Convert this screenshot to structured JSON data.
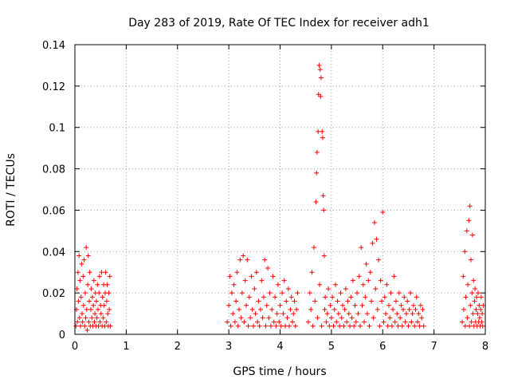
{
  "chart_data": {
    "type": "scatter",
    "title": "Day 283 of 2019, Rate Of TEC Index for receiver adh1",
    "xlabel": "GPS time / hours",
    "ylabel": "ROTI / TECUs",
    "xlim": [
      0,
      8
    ],
    "ylim": [
      0,
      0.14
    ],
    "xticks": [
      0,
      1,
      2,
      3,
      4,
      5,
      6,
      7,
      8
    ],
    "yticks": [
      0,
      0.02,
      0.04,
      0.06,
      0.08,
      0.1,
      0.12,
      0.14
    ],
    "ytick_labels": [
      "0",
      "0.02",
      "0.04",
      "0.06",
      "0.08",
      "0.1",
      "0.12",
      "0.14"
    ],
    "grid": true,
    "marker": "+",
    "color": "#ff0000",
    "series": [
      {
        "name": "adh1",
        "points": [
          [
            0.02,
            0.004
          ],
          [
            0.03,
            0.012
          ],
          [
            0.04,
            0.022
          ],
          [
            0.05,
            0.006
          ],
          [
            0.06,
            0.03
          ],
          [
            0.07,
            0.016
          ],
          [
            0.08,
            0.038
          ],
          [
            0.09,
            0.008
          ],
          [
            0.1,
            0.026
          ],
          [
            0.11,
            0.004
          ],
          [
            0.12,
            0.018
          ],
          [
            0.13,
            0.034
          ],
          [
            0.14,
            0.01
          ],
          [
            0.15,
            0.006
          ],
          [
            0.16,
            0.028
          ],
          [
            0.17,
            0.014
          ],
          [
            0.18,
            0.036
          ],
          [
            0.19,
            0.004
          ],
          [
            0.2,
            0.02
          ],
          [
            0.21,
            0.008
          ],
          [
            0.22,
            0.042
          ],
          [
            0.23,
            0.012
          ],
          [
            0.24,
            0.002
          ],
          [
            0.25,
            0.024
          ],
          [
            0.26,
            0.038
          ],
          [
            0.27,
            0.006
          ],
          [
            0.28,
            0.016
          ],
          [
            0.29,
            0.03
          ],
          [
            0.3,
            0.004
          ],
          [
            0.31,
            0.012
          ],
          [
            0.32,
            0.022
          ],
          [
            0.33,
            0.008
          ],
          [
            0.34,
            0.018
          ],
          [
            0.35,
            0.004
          ],
          [
            0.36,
            0.014
          ],
          [
            0.37,
            0.026
          ],
          [
            0.38,
            0.006
          ],
          [
            0.39,
            0.01
          ],
          [
            0.4,
            0.02
          ],
          [
            0.41,
            0.004
          ],
          [
            0.42,
            0.016
          ],
          [
            0.43,
            0.008
          ],
          [
            0.44,
            0.024
          ],
          [
            0.45,
            0.012
          ],
          [
            0.46,
            0.004
          ],
          [
            0.47,
            0.02
          ],
          [
            0.48,
            0.028
          ],
          [
            0.49,
            0.006
          ],
          [
            0.5,
            0.014
          ],
          [
            0.51,
            0.01
          ],
          [
            0.52,
            0.03
          ],
          [
            0.53,
            0.004
          ],
          [
            0.54,
            0.018
          ],
          [
            0.55,
            0.008
          ],
          [
            0.56,
            0.024
          ],
          [
            0.57,
            0.014
          ],
          [
            0.58,
            0.004
          ],
          [
            0.59,
            0.02
          ],
          [
            0.6,
            0.03
          ],
          [
            0.61,
            0.006
          ],
          [
            0.62,
            0.016
          ],
          [
            0.63,
            0.024
          ],
          [
            0.64,
            0.01
          ],
          [
            0.65,
            0.004
          ],
          [
            0.66,
            0.02
          ],
          [
            0.67,
            0.012
          ],
          [
            0.68,
            0.028
          ],
          [
            0.69,
            0.004
          ],
          [
            2.97,
            0.006
          ],
          [
            3.0,
            0.014
          ],
          [
            3.02,
            0.028
          ],
          [
            3.04,
            0.004
          ],
          [
            3.06,
            0.02
          ],
          [
            3.08,
            0.01
          ],
          [
            3.1,
            0.024
          ],
          [
            3.12,
            0.006
          ],
          [
            3.14,
            0.016
          ],
          [
            3.16,
            0.03
          ],
          [
            3.18,
            0.004
          ],
          [
            3.2,
            0.012
          ],
          [
            3.22,
            0.036
          ],
          [
            3.24,
            0.008
          ],
          [
            3.26,
            0.02
          ],
          [
            3.28,
            0.038
          ],
          [
            3.3,
            0.006
          ],
          [
            3.32,
            0.026
          ],
          [
            3.34,
            0.014
          ],
          [
            3.36,
            0.036
          ],
          [
            3.38,
            0.004
          ],
          [
            3.4,
            0.018
          ],
          [
            3.42,
            0.008
          ],
          [
            3.44,
            0.028
          ],
          [
            3.46,
            0.012
          ],
          [
            3.48,
            0.004
          ],
          [
            3.5,
            0.022
          ],
          [
            3.52,
            0.01
          ],
          [
            3.54,
            0.03
          ],
          [
            3.56,
            0.006
          ],
          [
            3.58,
            0.016
          ],
          [
            3.6,
            0.004
          ],
          [
            3.62,
            0.012
          ],
          [
            3.64,
            0.026
          ],
          [
            3.66,
            0.008
          ],
          [
            3.68,
            0.018
          ],
          [
            3.7,
            0.036
          ],
          [
            3.72,
            0.004
          ],
          [
            3.74,
            0.014
          ],
          [
            3.76,
            0.032
          ],
          [
            3.78,
            0.008
          ],
          [
            3.8,
            0.02
          ],
          [
            3.82,
            0.004
          ],
          [
            3.84,
            0.012
          ],
          [
            3.86,
            0.028
          ],
          [
            3.88,
            0.006
          ],
          [
            3.9,
            0.018
          ],
          [
            3.92,
            0.004
          ],
          [
            3.94,
            0.01
          ],
          [
            3.96,
            0.024
          ],
          [
            3.98,
            0.006
          ],
          [
            4.0,
            0.014
          ],
          [
            4.02,
            0.004
          ],
          [
            4.04,
            0.02
          ],
          [
            4.06,
            0.01
          ],
          [
            4.08,
            0.026
          ],
          [
            4.1,
            0.004
          ],
          [
            4.12,
            0.016
          ],
          [
            4.14,
            0.008
          ],
          [
            4.16,
            0.022
          ],
          [
            4.18,
            0.004
          ],
          [
            4.2,
            0.012
          ],
          [
            4.22,
            0.018
          ],
          [
            4.24,
            0.006
          ],
          [
            4.26,
            0.01
          ],
          [
            4.28,
            0.016
          ],
          [
            4.3,
            0.004
          ],
          [
            4.32,
            0.012
          ],
          [
            4.34,
            0.02
          ],
          [
            4.55,
            0.006
          ],
          [
            4.58,
            0.02
          ],
          [
            4.6,
            0.012
          ],
          [
            4.62,
            0.03
          ],
          [
            4.64,
            0.004
          ],
          [
            4.66,
            0.042
          ],
          [
            4.68,
            0.016
          ],
          [
            4.7,
            0.064
          ],
          [
            4.71,
            0.078
          ],
          [
            4.72,
            0.088
          ],
          [
            4.73,
            0.008
          ],
          [
            4.74,
            0.098
          ],
          [
            4.75,
            0.116
          ],
          [
            4.76,
            0.13
          ],
          [
            4.77,
            0.024
          ],
          [
            4.78,
            0.128
          ],
          [
            4.79,
            0.115
          ],
          [
            4.8,
            0.124
          ],
          [
            4.81,
            0.004
          ],
          [
            4.82,
            0.098
          ],
          [
            4.83,
            0.095
          ],
          [
            4.84,
            0.067
          ],
          [
            4.85,
            0.06
          ],
          [
            4.86,
            0.038
          ],
          [
            4.87,
            0.012
          ],
          [
            4.88,
            0.018
          ],
          [
            4.9,
            0.006
          ],
          [
            4.92,
            0.01
          ],
          [
            4.94,
            0.022
          ],
          [
            4.96,
            0.004
          ],
          [
            4.98,
            0.014
          ],
          [
            5.0,
            0.008
          ],
          [
            5.02,
            0.018
          ],
          [
            5.04,
            0.004
          ],
          [
            5.06,
            0.012
          ],
          [
            5.08,
            0.024
          ],
          [
            5.1,
            0.006
          ],
          [
            5.12,
            0.016
          ],
          [
            5.14,
            0.01
          ],
          [
            5.16,
            0.004
          ],
          [
            5.18,
            0.02
          ],
          [
            5.2,
            0.008
          ],
          [
            5.22,
            0.014
          ],
          [
            5.24,
            0.004
          ],
          [
            5.26,
            0.012
          ],
          [
            5.28,
            0.022
          ],
          [
            5.3,
            0.006
          ],
          [
            5.32,
            0.016
          ],
          [
            5.34,
            0.01
          ],
          [
            5.36,
            0.004
          ],
          [
            5.38,
            0.018
          ],
          [
            5.4,
            0.008
          ],
          [
            5.42,
            0.026
          ],
          [
            5.44,
            0.004
          ],
          [
            5.46,
            0.014
          ],
          [
            5.48,
            0.006
          ],
          [
            5.5,
            0.02
          ],
          [
            5.52,
            0.01
          ],
          [
            5.54,
            0.028
          ],
          [
            5.56,
            0.004
          ],
          [
            5.58,
            0.042
          ],
          [
            5.6,
            0.014
          ],
          [
            5.62,
            0.024
          ],
          [
            5.64,
            0.006
          ],
          [
            5.66,
            0.018
          ],
          [
            5.68,
            0.034
          ],
          [
            5.7,
            0.01
          ],
          [
            5.72,
            0.026
          ],
          [
            5.74,
            0.004
          ],
          [
            5.76,
            0.03
          ],
          [
            5.78,
            0.016
          ],
          [
            5.8,
            0.044
          ],
          [
            5.82,
            0.008
          ],
          [
            5.84,
            0.054
          ],
          [
            5.86,
            0.022
          ],
          [
            5.88,
            0.046
          ],
          [
            5.9,
            0.012
          ],
          [
            5.92,
            0.036
          ],
          [
            5.94,
            0.004
          ],
          [
            5.96,
            0.026
          ],
          [
            5.98,
            0.016
          ],
          [
            6.0,
            0.059
          ],
          [
            6.02,
            0.006
          ],
          [
            6.04,
            0.018
          ],
          [
            6.06,
            0.01
          ],
          [
            6.08,
            0.024
          ],
          [
            6.1,
            0.004
          ],
          [
            6.12,
            0.014
          ],
          [
            6.14,
            0.008
          ],
          [
            6.16,
            0.02
          ],
          [
            6.18,
            0.004
          ],
          [
            6.2,
            0.012
          ],
          [
            6.22,
            0.028
          ],
          [
            6.24,
            0.006
          ],
          [
            6.26,
            0.016
          ],
          [
            6.28,
            0.01
          ],
          [
            6.3,
            0.004
          ],
          [
            6.32,
            0.02
          ],
          [
            6.34,
            0.008
          ],
          [
            6.36,
            0.014
          ],
          [
            6.38,
            0.004
          ],
          [
            6.4,
            0.012
          ],
          [
            6.42,
            0.018
          ],
          [
            6.44,
            0.006
          ],
          [
            6.46,
            0.01
          ],
          [
            6.48,
            0.016
          ],
          [
            6.5,
            0.004
          ],
          [
            6.52,
            0.012
          ],
          [
            6.54,
            0.02
          ],
          [
            6.56,
            0.006
          ],
          [
            6.58,
            0.01
          ],
          [
            6.6,
            0.014
          ],
          [
            6.62,
            0.004
          ],
          [
            6.64,
            0.012
          ],
          [
            6.66,
            0.018
          ],
          [
            6.68,
            0.006
          ],
          [
            6.7,
            0.01
          ],
          [
            6.72,
            0.004
          ],
          [
            6.74,
            0.014
          ],
          [
            6.76,
            0.008
          ],
          [
            6.78,
            0.012
          ],
          [
            6.8,
            0.004
          ],
          [
            7.55,
            0.006
          ],
          [
            7.57,
            0.028
          ],
          [
            7.58,
            0.012
          ],
          [
            7.6,
            0.04
          ],
          [
            7.61,
            0.004
          ],
          [
            7.62,
            0.018
          ],
          [
            7.64,
            0.05
          ],
          [
            7.65,
            0.008
          ],
          [
            7.66,
            0.024
          ],
          [
            7.68,
            0.055
          ],
          [
            7.69,
            0.004
          ],
          [
            7.7,
            0.062
          ],
          [
            7.71,
            0.014
          ],
          [
            7.72,
            0.036
          ],
          [
            7.73,
            0.006
          ],
          [
            7.74,
            0.02
          ],
          [
            7.75,
            0.048
          ],
          [
            7.76,
            0.01
          ],
          [
            7.77,
            0.026
          ],
          [
            7.78,
            0.004
          ],
          [
            7.79,
            0.016
          ],
          [
            7.8,
            0.022
          ],
          [
            7.81,
            0.006
          ],
          [
            7.82,
            0.012
          ],
          [
            7.83,
            0.018
          ],
          [
            7.84,
            0.004
          ],
          [
            7.85,
            0.01
          ],
          [
            7.86,
            0.02
          ],
          [
            7.87,
            0.006
          ],
          [
            7.88,
            0.014
          ],
          [
            7.89,
            0.008
          ],
          [
            7.9,
            0.004
          ],
          [
            7.91,
            0.012
          ],
          [
            7.92,
            0.018
          ],
          [
            7.93,
            0.006
          ],
          [
            7.94,
            0.01
          ],
          [
            7.95,
            0.004
          ],
          [
            7.96,
            0.014
          ]
        ]
      }
    ]
  }
}
